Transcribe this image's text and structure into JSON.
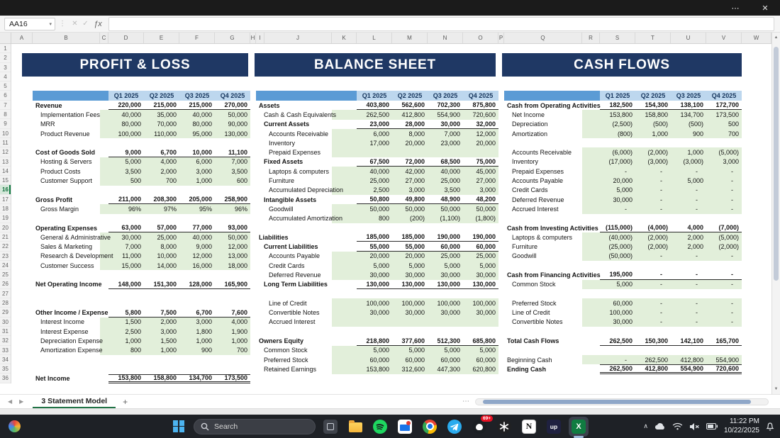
{
  "window": {
    "more_icon": "⋯",
    "close_icon": "✕"
  },
  "formula_bar": {
    "cell_reference": "AA16",
    "dropdown_icon": "▾",
    "dots_icon": "⋮",
    "cancel_icon": "✕",
    "enter_icon": "✓",
    "fx_icon": "ƒx",
    "formula_value": ""
  },
  "grid": {
    "column_letters": [
      "A",
      "B",
      "C",
      "D",
      "E",
      "F",
      "G",
      "H",
      "I",
      "J",
      "K",
      "L",
      "M",
      "N",
      "O",
      "P",
      "Q",
      "R",
      "S",
      "T",
      "U",
      "V",
      "W"
    ],
    "row_count": 36,
    "selected_row": 16,
    "quarter_headers": [
      "Q1 2025",
      "Q2 2025",
      "Q3 2025",
      "Q4 2025"
    ]
  },
  "colors": {
    "banner_navy": "#1F3864",
    "header_label_blue": "#5B9BD5",
    "header_cell_blue": "#BDD7EE",
    "detail_green": "#E2EFDA",
    "excel_green": "#107C41"
  },
  "sections": [
    {
      "id": "pl",
      "title": "PROFIT & LOSS",
      "rows": [
        {
          "r": 7,
          "label": "Revenue",
          "style": "total",
          "indent": 0,
          "values": [
            "220,000",
            "215,000",
            "215,000",
            "270,000"
          ]
        },
        {
          "r": 8,
          "label": "Implementation Fees",
          "style": "detail",
          "indent": 1,
          "values": [
            "40,000",
            "35,000",
            "40,000",
            "50,000"
          ]
        },
        {
          "r": 9,
          "label": "MRR",
          "style": "detail",
          "indent": 1,
          "values": [
            "80,000",
            "70,000",
            "80,000",
            "90,000"
          ]
        },
        {
          "r": 10,
          "label": "Product Revenue",
          "style": "detail",
          "indent": 1,
          "values": [
            "100,000",
            "110,000",
            "95,000",
            "130,000"
          ]
        },
        {
          "r": 12,
          "label": "Cost of Goods Sold",
          "style": "total",
          "indent": 0,
          "values": [
            "9,000",
            "6,700",
            "10,000",
            "11,100"
          ]
        },
        {
          "r": 13,
          "label": "Hosting & Servers",
          "style": "detail",
          "indent": 1,
          "values": [
            "5,000",
            "4,000",
            "6,000",
            "7,000"
          ]
        },
        {
          "r": 14,
          "label": "Product Costs",
          "style": "detail",
          "indent": 1,
          "values": [
            "3,500",
            "2,000",
            "3,000",
            "3,500"
          ]
        },
        {
          "r": 15,
          "label": "Customer Support",
          "style": "detail",
          "indent": 1,
          "values": [
            "500",
            "700",
            "1,000",
            "600"
          ]
        },
        {
          "r": 17,
          "label": "Gross Profit",
          "style": "total",
          "indent": 0,
          "values": [
            "211,000",
            "208,300",
            "205,000",
            "258,900"
          ]
        },
        {
          "r": 18,
          "label": "Gross Margin",
          "style": "detail",
          "indent": 1,
          "values": [
            "96%",
            "97%",
            "95%",
            "96%"
          ]
        },
        {
          "r": 20,
          "label": "Operating Expenses",
          "style": "total",
          "indent": 0,
          "values": [
            "63,000",
            "57,000",
            "77,000",
            "93,000"
          ]
        },
        {
          "r": 21,
          "label": "General & Administrative",
          "style": "detail",
          "indent": 1,
          "values": [
            "30,000",
            "25,000",
            "40,000",
            "50,000"
          ]
        },
        {
          "r": 22,
          "label": "Sales & Marketing",
          "style": "detail",
          "indent": 1,
          "values": [
            "7,000",
            "8,000",
            "9,000",
            "12,000"
          ]
        },
        {
          "r": 23,
          "label": "Research & Development",
          "style": "detail",
          "indent": 1,
          "values": [
            "11,000",
            "10,000",
            "12,000",
            "13,000"
          ]
        },
        {
          "r": 24,
          "label": "Customer Success",
          "style": "detail",
          "indent": 1,
          "values": [
            "15,000",
            "14,000",
            "16,000",
            "18,000"
          ]
        },
        {
          "r": 26,
          "label": "Net Operating Income",
          "style": "total",
          "indent": 0,
          "values": [
            "148,000",
            "151,300",
            "128,000",
            "165,900"
          ]
        },
        {
          "r": 29,
          "label": "Other Income / Expense",
          "style": "total",
          "indent": 0,
          "values": [
            "5,800",
            "7,500",
            "6,700",
            "7,600"
          ]
        },
        {
          "r": 30,
          "label": "Interest Income",
          "style": "detail",
          "indent": 1,
          "values": [
            "1,500",
            "2,000",
            "3,000",
            "4,000"
          ]
        },
        {
          "r": 31,
          "label": "Interest Expense",
          "style": "detail",
          "indent": 1,
          "values": [
            "2,500",
            "3,000",
            "1,800",
            "1,900"
          ]
        },
        {
          "r": 32,
          "label": "Depreciation Expense",
          "style": "detail",
          "indent": 1,
          "values": [
            "1,000",
            "1,500",
            "1,000",
            "1,000"
          ]
        },
        {
          "r": 33,
          "label": "Amortization Expense",
          "style": "detail",
          "indent": 1,
          "values": [
            "800",
            "1,000",
            "900",
            "700"
          ]
        },
        {
          "r": 36,
          "label": "Net Income",
          "style": "grand",
          "indent": 0,
          "values": [
            "153,800",
            "158,800",
            "134,700",
            "173,500"
          ]
        }
      ]
    },
    {
      "id": "bs",
      "title": "BALANCE SHEET",
      "rows": [
        {
          "r": 7,
          "label": "Assets",
          "style": "total",
          "indent": 0,
          "values": [
            "403,800",
            "562,600",
            "702,300",
            "875,800"
          ]
        },
        {
          "r": 8,
          "label": "Cash & Cash Equivalents",
          "style": "detail",
          "indent": 1,
          "values": [
            "262,500",
            "412,800",
            "554,900",
            "720,600"
          ]
        },
        {
          "r": 9,
          "label": "Current Assets",
          "style": "total",
          "indent": 1,
          "values": [
            "23,000",
            "28,000",
            "30,000",
            "32,000"
          ]
        },
        {
          "r": 10,
          "label": "Accounts Receivable",
          "style": "detail",
          "indent": 2,
          "values": [
            "6,000",
            "8,000",
            "7,000",
            "12,000"
          ]
        },
        {
          "r": 11,
          "label": "Inventory",
          "style": "detail",
          "indent": 2,
          "values": [
            "17,000",
            "20,000",
            "23,000",
            "20,000"
          ]
        },
        {
          "r": 12,
          "label": "Prepaid Expenses",
          "style": "detail",
          "indent": 2,
          "values": [
            "",
            "",
            "",
            ""
          ]
        },
        {
          "r": 13,
          "label": "Fixed Assets",
          "style": "total",
          "indent": 1,
          "values": [
            "67,500",
            "72,000",
            "68,500",
            "75,000"
          ]
        },
        {
          "r": 14,
          "label": "Laptops & computers",
          "style": "detail",
          "indent": 2,
          "values": [
            "40,000",
            "42,000",
            "40,000",
            "45,000"
          ]
        },
        {
          "r": 15,
          "label": "Furniture",
          "style": "detail",
          "indent": 2,
          "values": [
            "25,000",
            "27,000",
            "25,000",
            "27,000"
          ]
        },
        {
          "r": 16,
          "label": "Accumulated Depreciation",
          "style": "detail",
          "indent": 2,
          "values": [
            "2,500",
            "3,000",
            "3,500",
            "3,000"
          ]
        },
        {
          "r": 17,
          "label": "Intangible Assets",
          "style": "total",
          "indent": 1,
          "values": [
            "50,800",
            "49,800",
            "48,900",
            "48,200"
          ]
        },
        {
          "r": 18,
          "label": "Goodwill",
          "style": "detail",
          "indent": 2,
          "values": [
            "50,000",
            "50,000",
            "50,000",
            "50,000"
          ]
        },
        {
          "r": 19,
          "label": "Accumulated Amortization",
          "style": "detail",
          "indent": 2,
          "values": [
            "800",
            "(200)",
            "(1,100)",
            "(1,800)"
          ]
        },
        {
          "r": 21,
          "label": "Liabilities",
          "style": "total",
          "indent": 0,
          "values": [
            "185,000",
            "185,000",
            "190,000",
            "190,000"
          ]
        },
        {
          "r": 22,
          "label": "Current Liabilities",
          "style": "total",
          "indent": 1,
          "values": [
            "55,000",
            "55,000",
            "60,000",
            "60,000"
          ]
        },
        {
          "r": 23,
          "label": "Accounts Payable",
          "style": "detail",
          "indent": 2,
          "values": [
            "20,000",
            "20,000",
            "25,000",
            "25,000"
          ]
        },
        {
          "r": 24,
          "label": "Credit Cards",
          "style": "detail",
          "indent": 2,
          "values": [
            "5,000",
            "5,000",
            "5,000",
            "5,000"
          ]
        },
        {
          "r": 25,
          "label": "Deferred Revenue",
          "style": "detail",
          "indent": 2,
          "values": [
            "30,000",
            "30,000",
            "30,000",
            "30,000"
          ]
        },
        {
          "r": 26,
          "label": "Long Term Liabilities",
          "style": "total",
          "indent": 1,
          "values": [
            "130,000",
            "130,000",
            "130,000",
            "130,000"
          ]
        },
        {
          "r": 28,
          "label": "Line of Credit",
          "style": "detail",
          "indent": 2,
          "values": [
            "100,000",
            "100,000",
            "100,000",
            "100,000"
          ]
        },
        {
          "r": 29,
          "label": "Convertible Notes",
          "style": "detail",
          "indent": 2,
          "values": [
            "30,000",
            "30,000",
            "30,000",
            "30,000"
          ]
        },
        {
          "r": 30,
          "label": "Accrued Interest",
          "style": "detail",
          "indent": 2,
          "values": [
            "",
            "",
            "",
            ""
          ]
        },
        {
          "r": 32,
          "label": "Owners Equity",
          "style": "total",
          "indent": 0,
          "values": [
            "218,800",
            "377,600",
            "512,300",
            "685,800"
          ]
        },
        {
          "r": 33,
          "label": "Common Stock",
          "style": "detail",
          "indent": 1,
          "values": [
            "5,000",
            "5,000",
            "5,000",
            "5,000"
          ]
        },
        {
          "r": 34,
          "label": "Preferred Stock",
          "style": "detail",
          "indent": 1,
          "values": [
            "60,000",
            "60,000",
            "60,000",
            "60,000"
          ]
        },
        {
          "r": 35,
          "label": "Retained Earnings",
          "style": "detail",
          "indent": 1,
          "values": [
            "153,800",
            "312,600",
            "447,300",
            "620,800"
          ]
        }
      ]
    },
    {
      "id": "cf",
      "title": "CASH FLOWS",
      "rows": [
        {
          "r": 7,
          "label": "Cash from Operating Activities",
          "style": "total",
          "indent": 0,
          "values": [
            "182,500",
            "154,300",
            "138,100",
            "172,700"
          ]
        },
        {
          "r": 8,
          "label": "Net Income",
          "style": "detail",
          "indent": 1,
          "values": [
            "153,800",
            "158,800",
            "134,700",
            "173,500"
          ]
        },
        {
          "r": 9,
          "label": "Depreciation",
          "style": "detail",
          "indent": 1,
          "values": [
            "(2,500)",
            "(500)",
            "(500)",
            "500"
          ]
        },
        {
          "r": 10,
          "label": "Amortization",
          "style": "detail",
          "indent": 1,
          "values": [
            "(800)",
            "1,000",
            "900",
            "700"
          ]
        },
        {
          "r": 12,
          "label": "Accounts Receivable",
          "style": "detail",
          "indent": 1,
          "values": [
            "(6,000)",
            "(2,000)",
            "1,000",
            "(5,000)"
          ]
        },
        {
          "r": 13,
          "label": "Inventory",
          "style": "detail",
          "indent": 1,
          "values": [
            "(17,000)",
            "(3,000)",
            "(3,000)",
            "3,000"
          ]
        },
        {
          "r": 14,
          "label": "Prepaid Expenses",
          "style": "detail",
          "indent": 1,
          "values": [
            "-",
            "-",
            "-",
            "-"
          ]
        },
        {
          "r": 15,
          "label": "Accounts Payable",
          "style": "detail",
          "indent": 1,
          "values": [
            "20,000",
            "-",
            "5,000",
            "-"
          ]
        },
        {
          "r": 16,
          "label": "Credit Cards",
          "style": "detail",
          "indent": 1,
          "values": [
            "5,000",
            "-",
            "-",
            "-"
          ]
        },
        {
          "r": 17,
          "label": "Deferred Revenue",
          "style": "detail",
          "indent": 1,
          "values": [
            "30,000",
            "-",
            "-",
            "-"
          ]
        },
        {
          "r": 18,
          "label": "Accrued Interest",
          "style": "detail",
          "indent": 1,
          "values": [
            "-",
            "-",
            "-",
            "-"
          ]
        },
        {
          "r": 20,
          "label": "Cash from Investing Activities",
          "style": "total",
          "indent": 0,
          "values": [
            "(115,000)",
            "(4,000)",
            "4,000",
            "(7,000)"
          ]
        },
        {
          "r": 21,
          "label": "Laptops & computers",
          "style": "detail",
          "indent": 1,
          "values": [
            "(40,000)",
            "(2,000)",
            "2,000",
            "(5,000)"
          ]
        },
        {
          "r": 22,
          "label": "Furniture",
          "style": "detail",
          "indent": 1,
          "values": [
            "(25,000)",
            "(2,000)",
            "2,000",
            "(2,000)"
          ]
        },
        {
          "r": 23,
          "label": "Goodwill",
          "style": "detail",
          "indent": 1,
          "values": [
            "(50,000)",
            "-",
            "-",
            "-"
          ]
        },
        {
          "r": 25,
          "label": "Cash from Financing Activities",
          "style": "total",
          "indent": 0,
          "values": [
            "195,000",
            "-",
            "-",
            "-"
          ]
        },
        {
          "r": 26,
          "label": "Common Stock",
          "style": "detail",
          "indent": 1,
          "values": [
            "5,000",
            "-",
            "-",
            "-"
          ]
        },
        {
          "r": 28,
          "label": "Preferred Stock",
          "style": "detail",
          "indent": 1,
          "values": [
            "60,000",
            "-",
            "-",
            "-"
          ]
        },
        {
          "r": 29,
          "label": "Line of Credit",
          "style": "detail",
          "indent": 1,
          "values": [
            "100,000",
            "-",
            "-",
            "-"
          ]
        },
        {
          "r": 30,
          "label": "Convertible Notes",
          "style": "detail",
          "indent": 1,
          "values": [
            "30,000",
            "-",
            "-",
            "-"
          ]
        },
        {
          "r": 32,
          "label": "Total Cash Flows",
          "style": "total",
          "indent": 0,
          "values": [
            "262,500",
            "150,300",
            "142,100",
            "165,700"
          ]
        },
        {
          "r": 34,
          "label": "Beginning Cash",
          "style": "detail",
          "indent": 0,
          "values": [
            "-",
            "262,500",
            "412,800",
            "554,900"
          ]
        },
        {
          "r": 35,
          "label": "Ending Cash",
          "style": "grand",
          "indent": 0,
          "values": [
            "262,500",
            "412,800",
            "554,900",
            "720,600"
          ]
        }
      ]
    }
  ],
  "sheet_bar": {
    "prev_icon": "◀",
    "next_icon": "▶",
    "active_tab": "3 Statement Model",
    "add_button": "+",
    "overflow_icon": "⋯"
  },
  "taskbar": {
    "search_label": "Search",
    "chat_badge": "69+",
    "notion_letter": "N",
    "up_label": "up",
    "excel_letter": "X",
    "tray_expand_icon": "∧",
    "time": "11:22 PM",
    "date": "10/22/2025"
  }
}
